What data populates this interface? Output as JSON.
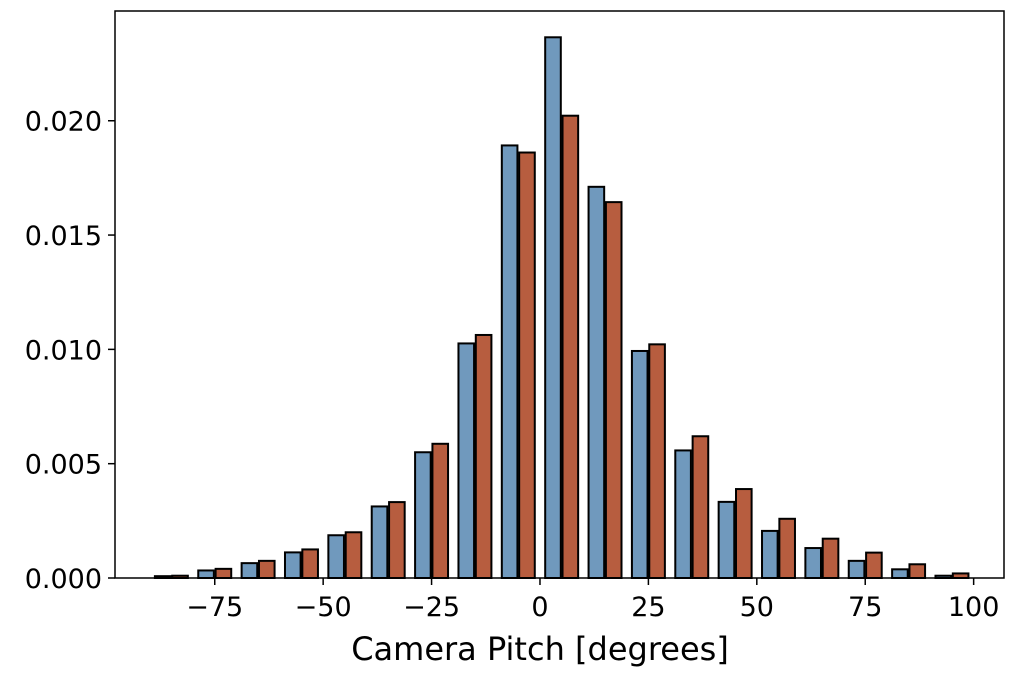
{
  "chart_data": {
    "type": "bar",
    "title": "",
    "xlabel": "Camera Pitch [degrees]",
    "ylabel": "",
    "xlim": [
      -98,
      107
    ],
    "ylim": [
      0,
      0.0248
    ],
    "grid": false,
    "legend": "none",
    "x_ticks": [
      -75,
      -50,
      -25,
      0,
      25,
      50,
      75,
      100
    ],
    "x_tick_labels": [
      "−75",
      "−50",
      "−25",
      "0",
      "25",
      "50",
      "75",
      "100"
    ],
    "y_ticks": [
      0,
      0.005,
      0.01,
      0.015,
      0.02
    ],
    "y_tick_labels": [
      "0.000",
      "0.005",
      "0.010",
      "0.015",
      "0.020"
    ],
    "bin_centers": [
      -85,
      -75,
      -65,
      -55,
      -45,
      -35,
      -25,
      -15,
      -5,
      5,
      15,
      25,
      35,
      45,
      55,
      65,
      75,
      85,
      95
    ],
    "series": [
      {
        "color": "#7099bd",
        "offset": -2,
        "values": [
          8e-05,
          0.00033,
          0.00065,
          0.00112,
          0.00187,
          0.00313,
          0.0055,
          0.01026,
          0.01892,
          0.02365,
          0.01711,
          0.00993,
          0.00558,
          0.00333,
          0.00206,
          0.00131,
          0.00075,
          0.00038,
          0.0001
        ]
      },
      {
        "color": "#b75d3f",
        "offset": 2,
        "values": [
          0.0001,
          0.0004,
          0.00075,
          0.00125,
          0.002,
          0.00332,
          0.00587,
          0.01063,
          0.01861,
          0.02022,
          0.01644,
          0.01022,
          0.0062,
          0.00389,
          0.00259,
          0.00172,
          0.00111,
          0.0006,
          0.0002
        ]
      }
    ],
    "bar_width": 3.6
  }
}
